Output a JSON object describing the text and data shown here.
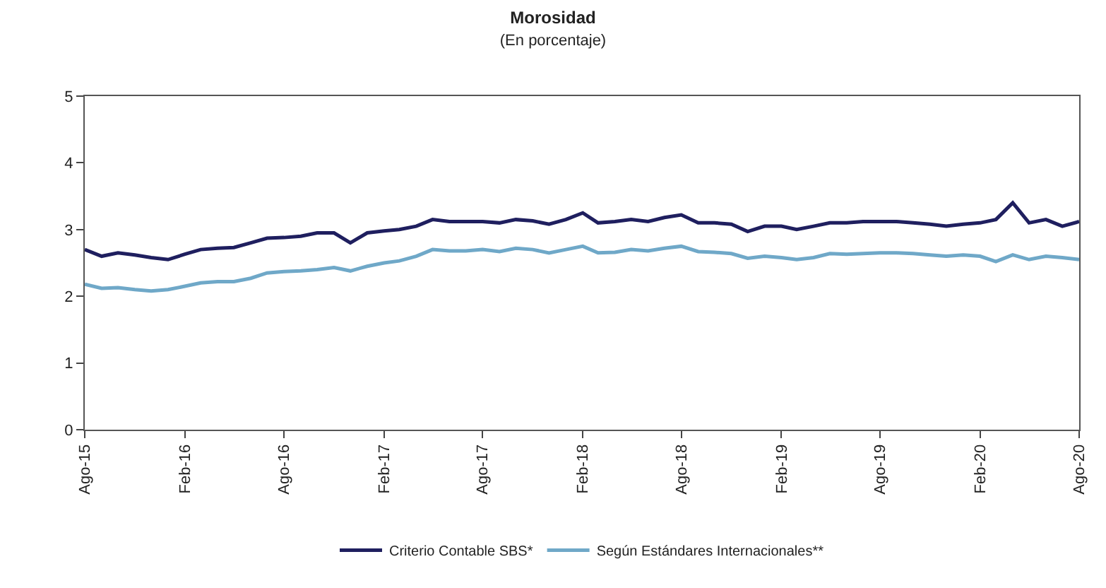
{
  "chart_data": {
    "type": "line",
    "title": "Morosidad",
    "subtitle": "(En porcentaje)",
    "x": [
      "2015-08",
      "2015-09",
      "2015-10",
      "2015-11",
      "2015-12",
      "2016-01",
      "2016-02",
      "2016-03",
      "2016-04",
      "2016-05",
      "2016-06",
      "2016-07",
      "2016-08",
      "2016-09",
      "2016-10",
      "2016-11",
      "2016-12",
      "2017-01",
      "2017-02",
      "2017-03",
      "2017-04",
      "2017-05",
      "2017-06",
      "2017-07",
      "2017-08",
      "2017-09",
      "2017-10",
      "2017-11",
      "2017-12",
      "2018-01",
      "2018-02",
      "2018-03",
      "2018-04",
      "2018-05",
      "2018-06",
      "2018-07",
      "2018-08",
      "2018-09",
      "2018-10",
      "2018-11",
      "2018-12",
      "2019-01",
      "2019-02",
      "2019-03",
      "2019-04",
      "2019-05",
      "2019-06",
      "2019-07",
      "2019-08",
      "2019-09",
      "2019-10",
      "2019-11",
      "2019-12",
      "2020-01",
      "2020-02",
      "2020-03",
      "2020-04",
      "2020-05",
      "2020-06",
      "2020-07",
      "2020-08"
    ],
    "series": [
      {
        "name": "Criterio Contable SBS*",
        "color": "#1f1f5f",
        "values": [
          2.7,
          2.6,
          2.65,
          2.62,
          2.58,
          2.55,
          2.63,
          2.7,
          2.72,
          2.73,
          2.8,
          2.87,
          2.88,
          2.9,
          2.95,
          2.95,
          2.8,
          2.95,
          2.98,
          3.0,
          3.05,
          3.15,
          3.12,
          3.12,
          3.12,
          3.1,
          3.15,
          3.13,
          3.08,
          3.15,
          3.25,
          3.1,
          3.12,
          3.15,
          3.12,
          3.18,
          3.22,
          3.1,
          3.1,
          3.08,
          2.97,
          3.05,
          3.05,
          3.0,
          3.05,
          3.1,
          3.1,
          3.12,
          3.12,
          3.12,
          3.1,
          3.08,
          3.05,
          3.08,
          3.1,
          3.15,
          3.4,
          3.1,
          3.15,
          3.05,
          3.12
        ]
      },
      {
        "name": "Según Estándares Internacionales**",
        "color": "#6fa8c8",
        "values": [
          2.18,
          2.12,
          2.13,
          2.1,
          2.08,
          2.1,
          2.15,
          2.2,
          2.22,
          2.22,
          2.27,
          2.35,
          2.37,
          2.38,
          2.4,
          2.43,
          2.38,
          2.45,
          2.5,
          2.53,
          2.6,
          2.7,
          2.68,
          2.68,
          2.7,
          2.67,
          2.72,
          2.7,
          2.65,
          2.7,
          2.75,
          2.65,
          2.66,
          2.7,
          2.68,
          2.72,
          2.75,
          2.67,
          2.66,
          2.64,
          2.57,
          2.6,
          2.58,
          2.55,
          2.58,
          2.64,
          2.63,
          2.64,
          2.65,
          2.65,
          2.64,
          2.62,
          2.6,
          2.62,
          2.6,
          2.52,
          2.62,
          2.55,
          2.6,
          2.58,
          2.55
        ]
      }
    ],
    "xlim": [
      "2015-08",
      "2020-08"
    ],
    "xticks": [
      {
        "value": "2015-08",
        "label": "Ago-15"
      },
      {
        "value": "2016-02",
        "label": "Feb-16"
      },
      {
        "value": "2016-08",
        "label": "Ago-16"
      },
      {
        "value": "2017-02",
        "label": "Feb-17"
      },
      {
        "value": "2017-08",
        "label": "Ago-17"
      },
      {
        "value": "2018-02",
        "label": "Feb-18"
      },
      {
        "value": "2018-08",
        "label": "Ago-18"
      },
      {
        "value": "2019-02",
        "label": "Feb-19"
      },
      {
        "value": "2019-08",
        "label": "Ago-19"
      },
      {
        "value": "2020-02",
        "label": "Feb-20"
      },
      {
        "value": "2020-08",
        "label": "Ago-20"
      }
    ],
    "ylim": [
      0,
      5
    ],
    "yticks": [
      0,
      1,
      2,
      3,
      4,
      5
    ],
    "legend": "bottom",
    "marker": "none",
    "line_style": "solid"
  }
}
